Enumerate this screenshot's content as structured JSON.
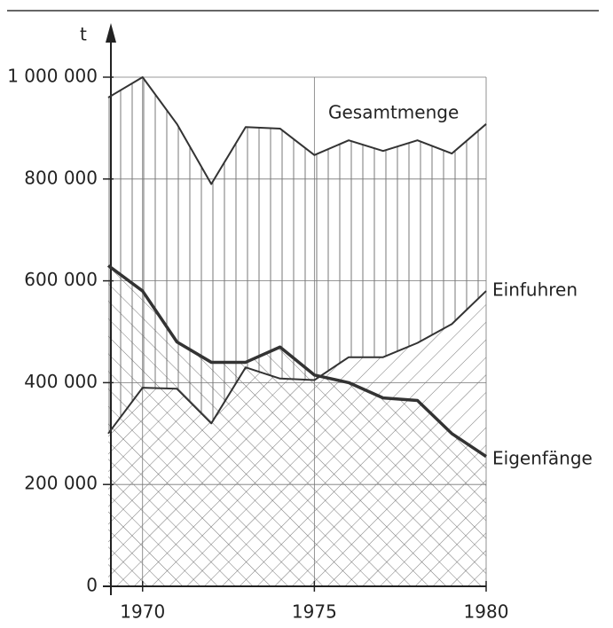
{
  "chart_data": {
    "type": "line",
    "y_label": "t",
    "x": [
      1969,
      1970,
      1971,
      1972,
      1973,
      1974,
      1975,
      1976,
      1977,
      1978,
      1979,
      1980
    ],
    "xlim": [
      1969,
      1980
    ],
    "xticks": [
      1970,
      1975,
      1980
    ],
    "ylim": [
      0,
      1000000
    ],
    "yticks": [
      0,
      {
        "value": 200000,
        "label": "200 000"
      },
      {
        "value": 400000,
        "label": "400 000"
      },
      {
        "value": 600000,
        "label": "600 000"
      },
      {
        "value": 800000,
        "label": "800 000"
      },
      {
        "value": 1000000,
        "label": "1 000 000"
      }
    ],
    "grid": true,
    "series": [
      {
        "name": "Gesamtmenge",
        "color": "#333333",
        "linewidth": 2,
        "values": [
          960000,
          1000000,
          908000,
          790000,
          902000,
          899000,
          847000,
          876000,
          855000,
          876000,
          850000,
          908000
        ]
      },
      {
        "name": "Einfuhren",
        "color": "#333333",
        "linewidth": 2,
        "values": [
          300000,
          390000,
          388000,
          320000,
          430000,
          408000,
          405000,
          450000,
          450000,
          478000,
          515000,
          580000
        ]
      },
      {
        "name": "Eigenfänge",
        "color": "#333333",
        "linewidth": 3.5,
        "values": [
          630000,
          580000,
          480000,
          440000,
          440000,
          470000,
          415000,
          400000,
          370000,
          365000,
          300000,
          255000
        ]
      }
    ]
  }
}
